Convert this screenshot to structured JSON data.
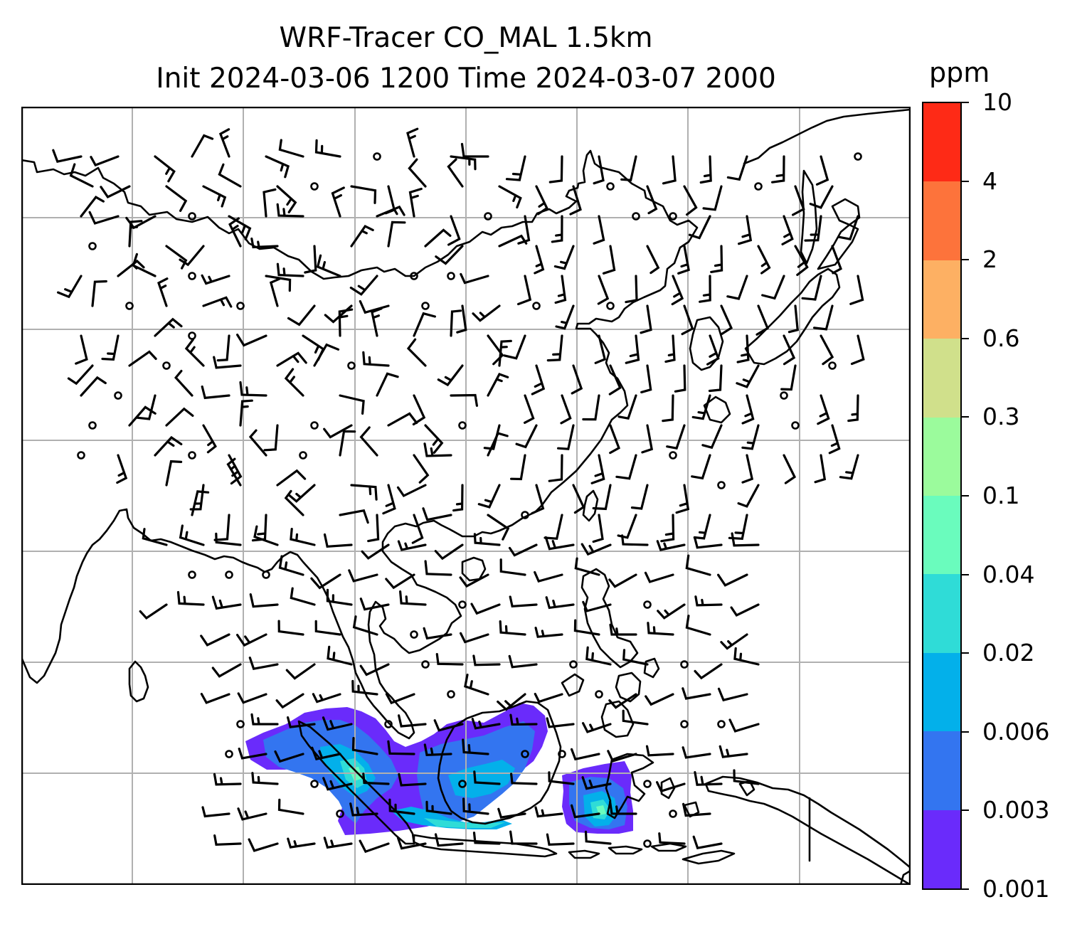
{
  "title": {
    "line1": "WRF-Tracer CO_MAL 1.5km",
    "line2": "Init 2024-03-06 1200 Time 2024-03-07 2000"
  },
  "colorbar": {
    "unit": "ppm",
    "tick_labels": [
      "0.001",
      "0.003",
      "0.006",
      "0.02",
      "0.04",
      "0.1",
      "0.3",
      "0.6",
      "2",
      "4",
      "10"
    ],
    "colors": [
      "#6a2bfb",
      "#3375f0",
      "#03b0ea",
      "#2fdcd7",
      "#6afcbd",
      "#9bfb9c",
      "#d0e08b",
      "#fdb063",
      "#fd733b",
      "#fe2a16"
    ]
  },
  "map_colors": {
    "coastline": "#000000",
    "gridline": "#b0b0b0",
    "wind_barb": "#000000"
  }
}
